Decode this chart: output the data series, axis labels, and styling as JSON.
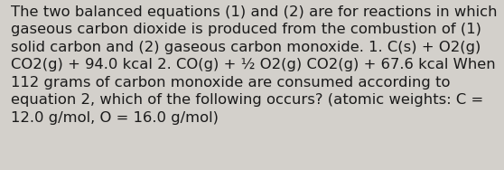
{
  "lines": [
    "The two balanced equations (1) and (2) are for reactions in which",
    "gaseous carbon dioxide is produced from the combustion of (1)",
    "solid carbon and (2) gaseous carbon monoxide. 1. C(s) + O2(g)",
    "CO2(g) + 94.0 kcal 2. CO(g) + ½ O2(g) CO2(g) + 67.6 kcal When",
    "112 grams of carbon monoxide are consumed according to",
    "equation 2, which of the following occurs? (atomic weights: C =",
    "12.0 g/mol, O = 16.0 g/mol)"
  ],
  "background_color": "#d3d0cb",
  "text_color": "#1a1a1a",
  "font_size": 11.8,
  "fig_width": 5.58,
  "fig_height": 1.88,
  "dpi": 100,
  "linespacing": 1.38
}
